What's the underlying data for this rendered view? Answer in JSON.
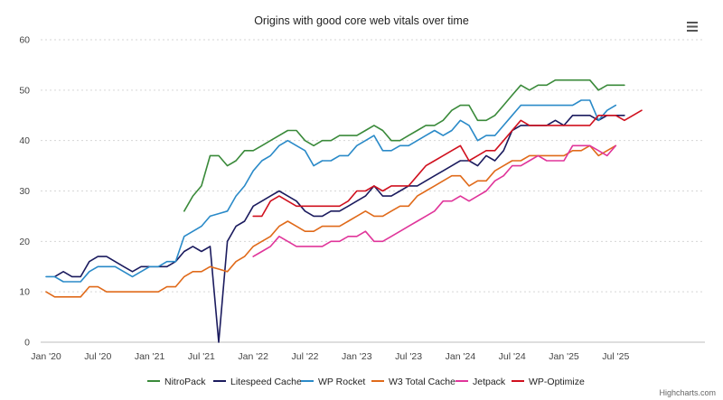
{
  "chart_data": {
    "type": "line",
    "title": "Origins with good core web vitals over time",
    "xlabel": "",
    "ylabel": "",
    "ylim": [
      0,
      60
    ],
    "yticks": [
      0,
      10,
      20,
      30,
      40,
      50,
      60
    ],
    "grid": true,
    "legend_position": "bottom",
    "x_start": "Jan '20",
    "x_tick_labels": [
      "Jan '20",
      "Jul '20",
      "Jan '21",
      "Jul '21",
      "Jan '22",
      "Jul '22",
      "Jan '23",
      "Jul '23",
      "Jan '24",
      "Jul '24",
      "Jan '25",
      "Jul '25"
    ],
    "x_tick_month_index": [
      0,
      6,
      12,
      18,
      24,
      30,
      36,
      42,
      48,
      54,
      60,
      66
    ],
    "x_domain_months": [
      0,
      67
    ],
    "series": [
      {
        "name": "NitroPack",
        "color": "#3a8a3a",
        "start_month": 16,
        "values": [
          26,
          29,
          31,
          37,
          37,
          35,
          36,
          38,
          38,
          39,
          40,
          41,
          42,
          42,
          40,
          39,
          40,
          40,
          41,
          41,
          41,
          42,
          43,
          42,
          40,
          40,
          41,
          42,
          43,
          43,
          44,
          46,
          47,
          47,
          44,
          44,
          45,
          47,
          49,
          51,
          50,
          51,
          51,
          52,
          52,
          52,
          52,
          52,
          50,
          51,
          51,
          51
        ]
      },
      {
        "name": "Litespeed Cache",
        "color": "#1b1b5e",
        "start_month": 1,
        "values": [
          13,
          14,
          13,
          13,
          16,
          17,
          17,
          16,
          15,
          14,
          15,
          15,
          15,
          15,
          16,
          18,
          19,
          18,
          19,
          0,
          20,
          23,
          24,
          27,
          28,
          29,
          30,
          29,
          28,
          26,
          25,
          25,
          26,
          26,
          27,
          28,
          29,
          31,
          29,
          29,
          30,
          31,
          31,
          32,
          33,
          34,
          35,
          36,
          36,
          35,
          37,
          36,
          38,
          42,
          43,
          43,
          43,
          43,
          44,
          43,
          45,
          45,
          45,
          44,
          45,
          45,
          45
        ]
      },
      {
        "name": "WP Rocket",
        "color": "#2a8ac8",
        "start_month": 0,
        "values": [
          13,
          13,
          12,
          12,
          12,
          14,
          15,
          15,
          15,
          14,
          13,
          14,
          15,
          15,
          16,
          16,
          21,
          22,
          23,
          25,
          25.5,
          26,
          29,
          31,
          34,
          36,
          37,
          39,
          40,
          39,
          38,
          35,
          36,
          36,
          37,
          37,
          39,
          40,
          41,
          38,
          38,
          39,
          39,
          40,
          41,
          42,
          41,
          42,
          44,
          43,
          40,
          41,
          41,
          43,
          45,
          47,
          47,
          47,
          47,
          47,
          47,
          47,
          48,
          48,
          44,
          46,
          47
        ]
      },
      {
        "name": "W3 Total Cache",
        "color": "#e06a1a",
        "start_month": 0,
        "values": [
          10,
          9,
          9,
          9,
          9,
          11,
          11,
          10,
          10,
          10,
          10,
          10,
          10,
          10,
          11,
          11,
          13,
          14,
          14,
          15,
          14.5,
          14,
          16,
          17,
          19,
          20,
          21,
          23,
          24,
          23,
          22,
          22,
          23,
          23,
          23,
          24,
          25,
          26,
          25,
          25,
          26,
          27,
          27,
          29,
          30,
          31,
          32,
          33,
          33,
          31,
          32,
          32,
          34,
          35,
          36,
          36,
          37,
          37,
          37,
          37,
          37,
          38,
          38,
          39,
          37,
          38,
          39
        ]
      },
      {
        "name": "Jetpack",
        "color": "#e0359a",
        "start_month": 24,
        "values": [
          17,
          18,
          19,
          21,
          20,
          19,
          19,
          19,
          19,
          20,
          20,
          21,
          21,
          22,
          20,
          20,
          21,
          22,
          23,
          24,
          25,
          26,
          28,
          28,
          29,
          28,
          29,
          30,
          32,
          33,
          35,
          35,
          36,
          37,
          36,
          36,
          36,
          39,
          39,
          39,
          38,
          37,
          39
        ]
      },
      {
        "name": "WP-Optimize",
        "color": "#d0101e",
        "start_month": 24,
        "values": [
          25,
          25,
          28,
          29,
          28,
          27,
          27,
          27,
          27,
          27,
          27,
          28,
          30,
          30,
          31,
          30,
          31,
          31,
          31,
          33,
          35,
          36,
          37,
          38,
          39,
          36,
          37,
          38,
          38,
          40,
          42,
          44,
          43,
          43,
          43,
          43,
          43,
          43,
          43,
          43,
          45,
          45,
          45,
          44,
          45,
          46
        ]
      }
    ]
  },
  "credit": "Highcharts.com",
  "menu_icon": "hamburger-menu-icon"
}
